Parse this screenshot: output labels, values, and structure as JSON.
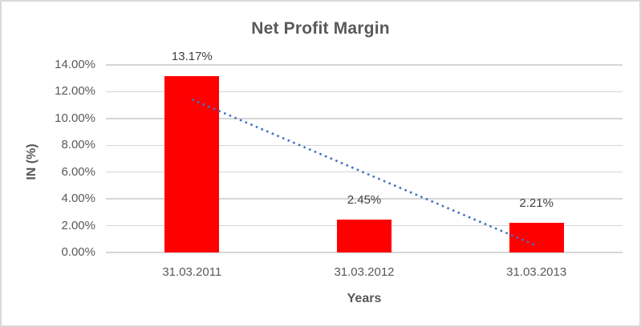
{
  "chart_data": {
    "type": "bar",
    "title": "Net Profit Margin",
    "categories": [
      "31.03.2011",
      "31.03.2012",
      "31.03.2013"
    ],
    "values": [
      13.17,
      2.45,
      2.21
    ],
    "data_labels": [
      "13.17%",
      "2.45%",
      "2.21%"
    ],
    "xlabel": "Years",
    "ylabel": "IN (%)",
    "ylim": [
      0,
      14
    ],
    "ytick_step": 2,
    "ytick_labels": [
      "0.00%",
      "2.00%",
      "4.00%",
      "6.00%",
      "8.00%",
      "10.00%",
      "12.00%",
      "14.00%"
    ],
    "grid": true,
    "legend": "none",
    "bar_color": "#ff0000",
    "label_color": "#595959",
    "gridline_color": "#d6d6d6",
    "trendline": {
      "type": "linear",
      "style": "dotted",
      "color": "#4472c4",
      "start_value": 11.42,
      "end_value": 0.5,
      "start_category_index": 0,
      "end_category_index": 2
    }
  }
}
